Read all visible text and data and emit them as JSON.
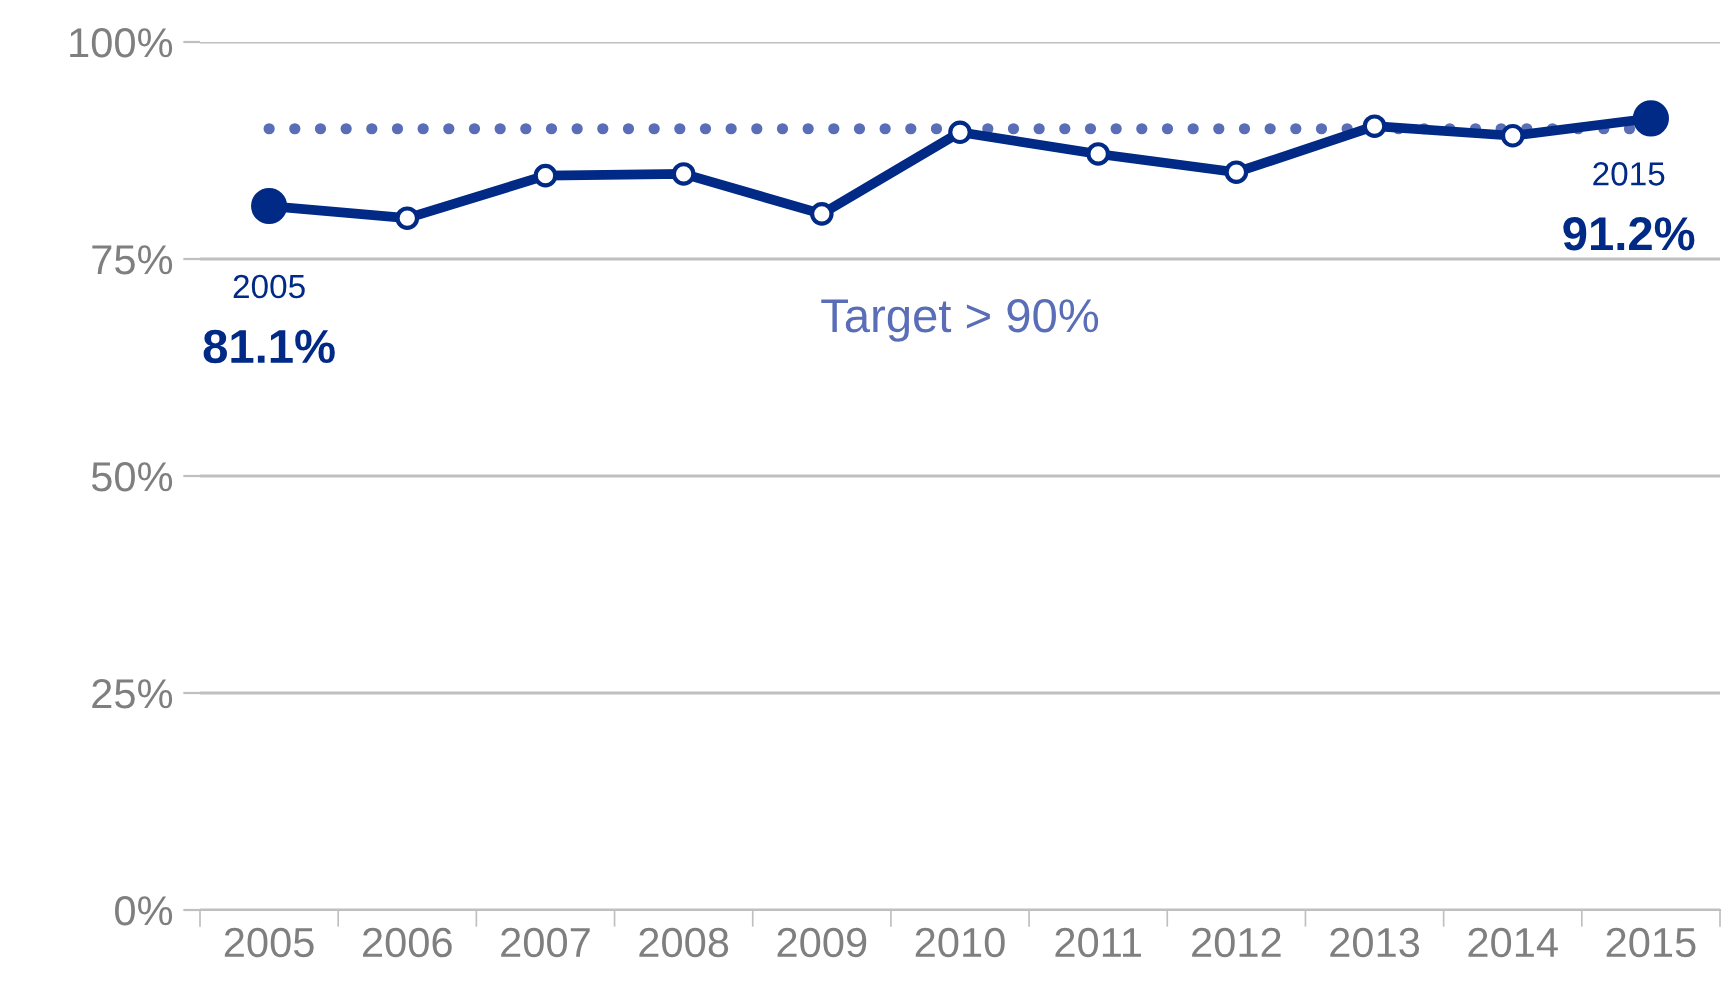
{
  "chart_data": {
    "type": "line",
    "categories": [
      "2005",
      "2006",
      "2007",
      "2008",
      "2009",
      "2010",
      "2011",
      "2012",
      "2013",
      "2014",
      "2015"
    ],
    "series": [
      {
        "color": "#002a85",
        "values": [
          81.1,
          79.7,
          84.6,
          84.8,
          80.2,
          89.6,
          87.1,
          85.0,
          90.3,
          89.2,
          91.2
        ],
        "value_labels": [
          "81.1%",
          null,
          null,
          null,
          null,
          null,
          null,
          null,
          null,
          null,
          "91.2%"
        ]
      }
    ],
    "annotations": [
      {
        "text": "2005",
        "x": "2005",
        "y": 81.1
      },
      {
        "text": "2015",
        "x": "2015",
        "y": 91.2
      }
    ],
    "ref_lines": [
      {
        "axis": "y",
        "value": 90,
        "label": "Target > 90%",
        "color": "#5a6eb8",
        "line_style": "dotted"
      }
    ],
    "ylim": [
      0,
      100
    ],
    "yticks": [
      {
        "value": 0,
        "label": "0%"
      },
      {
        "value": 25,
        "label": "25%"
      },
      {
        "value": 50,
        "label": "50%"
      },
      {
        "value": 75,
        "label": "75%"
      },
      {
        "value": 100,
        "label": "100%"
      }
    ],
    "grid": "y",
    "marker": "circle",
    "line_style": "solid"
  }
}
